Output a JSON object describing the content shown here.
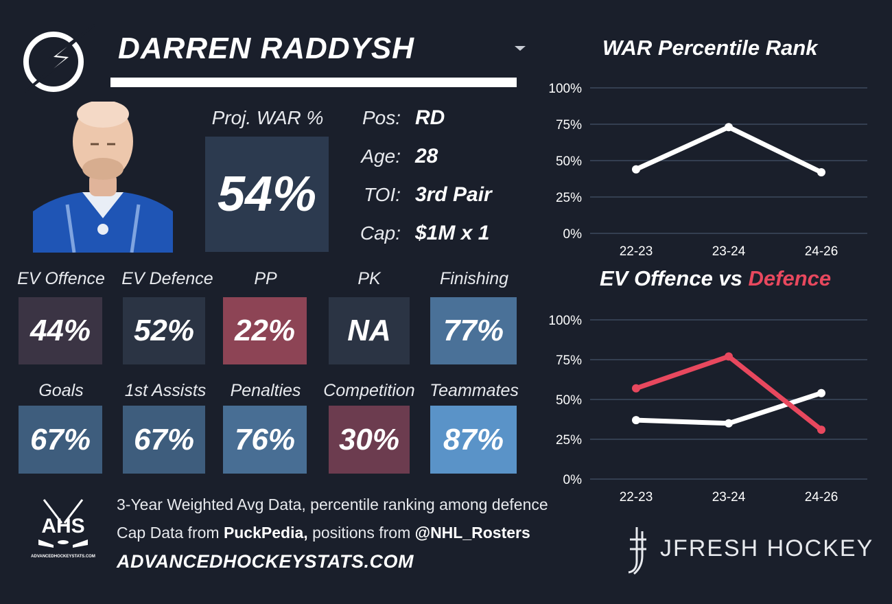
{
  "header": {
    "player_name": "DARREN RADDYSH"
  },
  "proj_war": {
    "label": "Proj. WAR %",
    "value": "54%"
  },
  "info": [
    {
      "label": "Pos:",
      "value": "RD"
    },
    {
      "label": "Age:",
      "value": "28"
    },
    {
      "label": "TOI:",
      "value": "3rd Pair"
    },
    {
      "label": "Cap:",
      "value": "$1M x 1"
    }
  ],
  "stats_row1": [
    {
      "label": "EV Offence",
      "value": "44%",
      "color": "#3b3444"
    },
    {
      "label": "EV Defence",
      "value": "52%",
      "color": "#2b3444"
    },
    {
      "label": "PP",
      "value": "22%",
      "color": "#8d4455"
    },
    {
      "label": "PK",
      "value": "NA",
      "color": "#2b3444"
    },
    {
      "label": "Finishing",
      "value": "77%",
      "color": "#4a7198"
    }
  ],
  "stats_row2": [
    {
      "label": "Goals",
      "value": "67%",
      "color": "#3e5d7d"
    },
    {
      "label": "1st Assists",
      "value": "67%",
      "color": "#3e5d7d"
    },
    {
      "label": "Penalties",
      "value": "76%",
      "color": "#486e94"
    },
    {
      "label": "Competition",
      "value": "30%",
      "color": "#6c3c4f"
    },
    {
      "label": "Teammates",
      "value": "87%",
      "color": "#5a93c8"
    }
  ],
  "footer": {
    "line1": "3-Year Weighted Avg Data, percentile ranking among defence",
    "line2_prefix": "Cap Data from ",
    "line2_bold1": "PuckPedia,",
    "line2_mid": " positions from ",
    "line2_bold2": "@NHL_Rosters",
    "site": "ADVANCEDHOCKEYSTATS.COM",
    "ahs_logo_text": "AHS",
    "ahs_logo_sub": "ADVANCEDHOCKEYSTATS.COM"
  },
  "brand": {
    "name": "JFRESH HOCKEY"
  },
  "chart_data": [
    {
      "type": "line",
      "title": "WAR Percentile Rank",
      "categories": [
        "22-23",
        "23-24",
        "24-26"
      ],
      "series": [
        {
          "name": "",
          "color": "#ffffff",
          "values": [
            44,
            73,
            42
          ]
        }
      ],
      "ylim": [
        0,
        100
      ],
      "yticks": [
        "0%",
        "25%",
        "50%",
        "75%",
        "100%"
      ],
      "grid": true
    },
    {
      "type": "line",
      "title": "EV Offence vs Defence",
      "title_part1": "EV Offence vs ",
      "title_part2": "Defence",
      "categories": [
        "22-23",
        "23-24",
        "24-26"
      ],
      "series": [
        {
          "name": "EV Offence",
          "color": "#ffffff",
          "values": [
            37,
            35,
            54
          ]
        },
        {
          "name": "Defence",
          "color": "#e8485e",
          "values": [
            57,
            77,
            31
          ]
        }
      ],
      "ylim": [
        0,
        100
      ],
      "yticks": [
        "0%",
        "25%",
        "50%",
        "75%",
        "100%"
      ],
      "grid": true
    }
  ]
}
